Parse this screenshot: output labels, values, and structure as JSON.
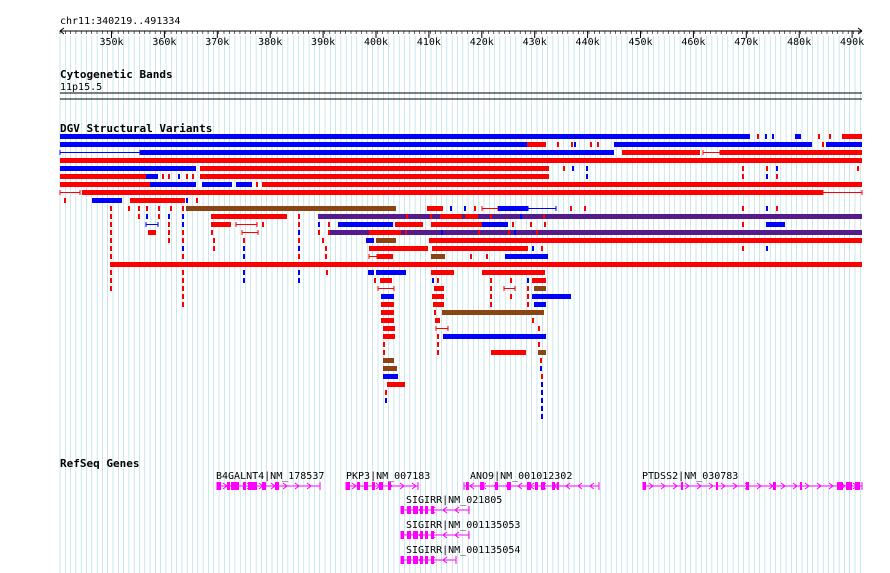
{
  "ruler": {
    "region": "chr11:340219..491334",
    "tick_labels": [
      "350k",
      "360k",
      "370k",
      "380k",
      "390k",
      "400k",
      "410k",
      "420k",
      "430k",
      "440k",
      "450k",
      "460k",
      "470k",
      "480k",
      "490k"
    ]
  },
  "tracks": {
    "cytoband": {
      "title": "Cytogenetic Bands",
      "band": "11p15.5"
    },
    "dgv": {
      "title": "DGV Structural Variants"
    },
    "refseq": {
      "title": "RefSeq Genes"
    }
  },
  "genes": [
    {
      "label": "B4GALNT4|NM_178537"
    },
    {
      "label": "PKP3|NM_007183"
    },
    {
      "label": "ANO9|NM_001012302"
    },
    {
      "label": "PTDSS2|NM_030783"
    },
    {
      "label": "SIGIRR|NM_021805"
    },
    {
      "label": "SIGIRR|NM_001135053"
    },
    {
      "label": "SIGIRR|NM_001135054"
    }
  ],
  "colors": {
    "grid": "#a9d7e3",
    "loss": "#ff0000",
    "gain": "#0000ff",
    "inversion": "#8b4513",
    "complex": "#551a8b",
    "gene": "#ff00ff",
    "text": "#000000"
  }
}
